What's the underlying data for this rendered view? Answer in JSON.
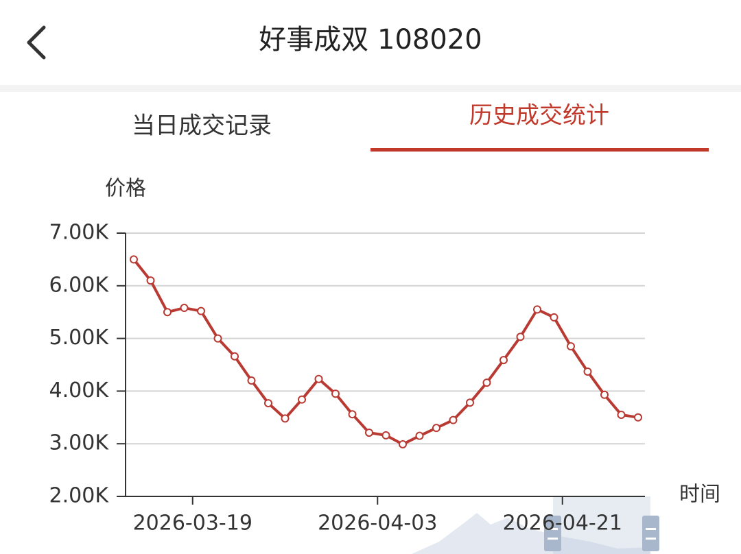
{
  "header": {
    "title": "好事成双 108020"
  },
  "tabs": [
    "当日成交记录",
    "历史成交统计"
  ],
  "chart_data": {
    "type": "line",
    "y_label": "价格",
    "x_label": "时间",
    "categories": [
      null,
      null,
      null,
      null,
      "2026-03-19",
      null,
      null,
      null,
      null,
      null,
      null,
      null,
      null,
      null,
      null,
      "2026-04-03",
      null,
      null,
      null,
      null,
      null,
      null,
      null,
      null,
      null,
      null,
      "2026-04-21",
      null,
      null,
      null,
      null
    ],
    "series": [
      {
        "name": "价格",
        "color": "#b83a32",
        "values": [
          6500,
          6100,
          5500,
          5580,
          5520,
          5000,
          4660,
          4200,
          3770,
          3480,
          3840,
          4230,
          3950,
          3560,
          3210,
          3160,
          2990,
          3150,
          3300,
          3450,
          3780,
          4160,
          4590,
          5030,
          5550,
          5400,
          4850,
          4370,
          3930,
          3550,
          3500
        ]
      }
    ],
    "ylim": [
      2000,
      7000
    ],
    "yticks": [
      {
        "value": 2000,
        "label": "2.00K"
      },
      {
        "value": 3000,
        "label": "3.00K"
      },
      {
        "value": 4000,
        "label": "4.00K"
      },
      {
        "value": 5000,
        "label": "5.00K"
      },
      {
        "value": 6000,
        "label": "6.00K"
      },
      {
        "value": 7000,
        "label": "7.00K"
      }
    ],
    "grid": true
  }
}
